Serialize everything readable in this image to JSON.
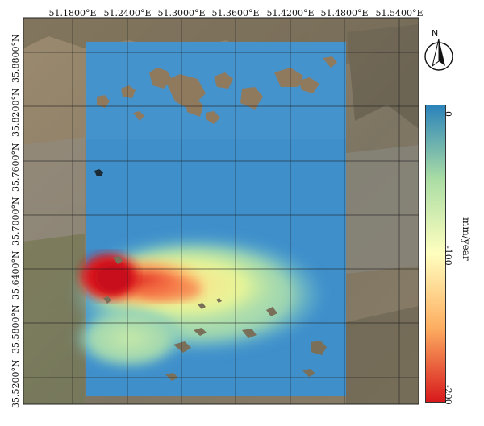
{
  "map": {
    "longitude_labels": [
      "51.1800°E",
      "51.2400°E",
      "51.3000°E",
      "51.3600°E",
      "51.4200°E",
      "51.4800°E",
      "51.5400°E"
    ],
    "latitude_labels": [
      "35.8800°N",
      "35.8200°N",
      "35.7600°N",
      "35.7000°N",
      "35.6400°N",
      "35.5800°N",
      "35.5200°N"
    ],
    "north_label": "N",
    "colorbar": {
      "ticks": [
        "0",
        "-100",
        "-200"
      ],
      "unit": "mm/year",
      "colors": [
        "#2b83ba",
        "#abdda4",
        "#ffffbf",
        "#fdae61",
        "#d7191c"
      ]
    },
    "colors": {
      "subsidence_blue": "#3f8fcb",
      "subsidence_red": "#d7191c",
      "terrain": "#8d7f68"
    }
  }
}
